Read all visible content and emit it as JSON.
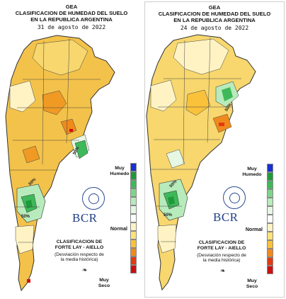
{
  "panels": [
    {
      "org": "GEA",
      "title_line1": "CLASIFICACION DE HUMEDAD DEL SUELO",
      "title_line2": "EN LA REPUBLICA ARGENTINA",
      "date": "31 de agosto de 2022",
      "legend_top": "Muy\nHumedo",
      "legend_normal": "Normal",
      "legend_bottom": "Muy\nSeco",
      "brand": "BCR",
      "method_title": "CLASIFICACION DE\nFORTE LAY - AIELLO",
      "method_sub": "(Desviación respecto de\nla media histórica)",
      "contour_labels": [
        "50%",
        "50%",
        "50%"
      ]
    },
    {
      "org": "GEA",
      "title_line1": "CLASIFICACION DE HUMEDAD DEL SUELO",
      "title_line2": "EN LA REPUBLICA ARGENTINA",
      "date": "24 de agosto de 2022",
      "legend_top": "Muy\nHumedo",
      "legend_normal": "Normal",
      "legend_bottom": "Muy\nSeco",
      "brand": "BCR",
      "method_title": "CLASIFICACION DE\nFORTE LAY - AIELLO",
      "method_sub": "(Desviación respecto de\nla media histórica)",
      "contour_labels": [
        "50%",
        "50%",
        "50%"
      ]
    }
  ],
  "scale_colors": [
    "#1a2fd0",
    "#1f9a3a",
    "#3fb85a",
    "#7fd48c",
    "#b8ebbc",
    "#e6f7e4",
    "#ffffff",
    "#fff3c4",
    "#ffe27a",
    "#f9c23a",
    "#f08a1c",
    "#e33a12",
    "#cc1010"
  ]
}
